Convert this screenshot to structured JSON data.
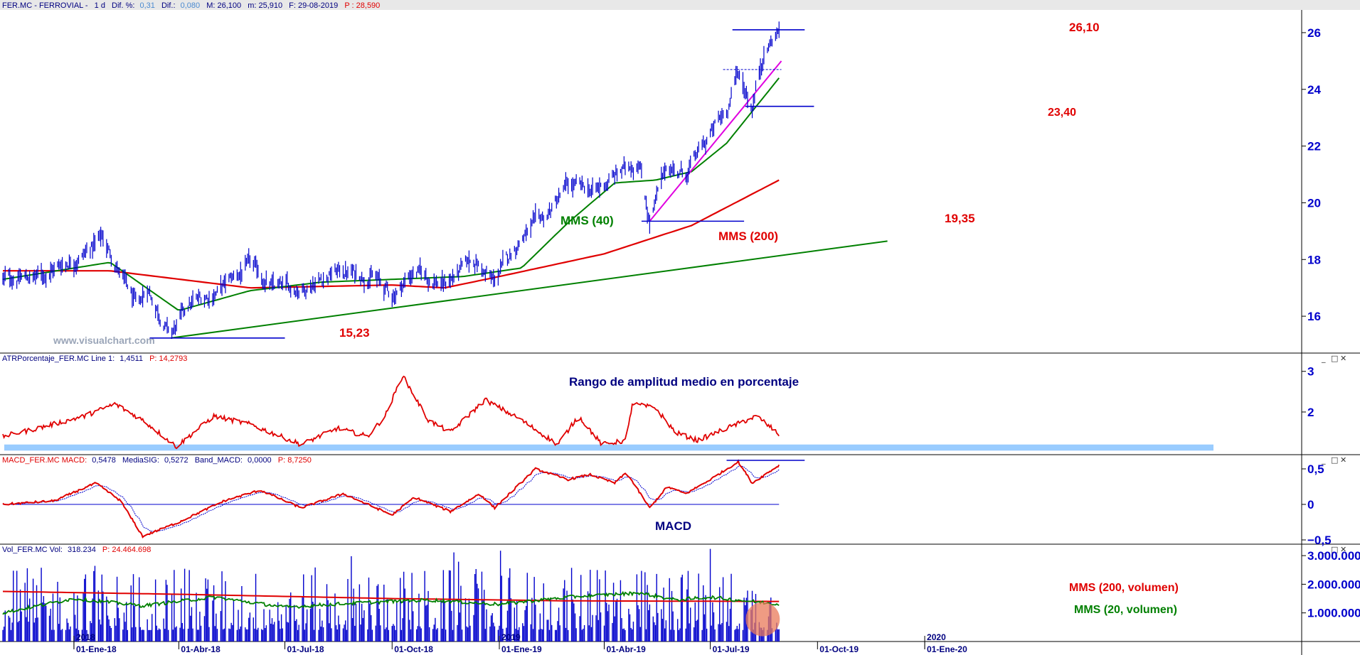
{
  "header": {
    "symbol": "FER.MC - FERROVIAL -",
    "period": "1 d",
    "dif_pct_label": "Dif. %:",
    "dif_pct_value": "0,31",
    "dif_label": "Dif.:",
    "dif_value": "0,080",
    "max": "M: 26,100",
    "min": "m: 25,910",
    "date": "F: 29-08-2019",
    "prev": "P : 28,590"
  },
  "panels": {
    "atr": {
      "label": "ATRPorcentaje_FER.MC  Line 1:",
      "value": "1,4511",
      "p": "P: 14,2793",
      "title": "Rango de amplitud medio en porcentaje"
    },
    "macd": {
      "label": "MACD_FER.MC  MACD:",
      "value": "0,5478",
      "sig_label": "MediaSIG:",
      "sig_value": "0,5272",
      "band_label": "Band_MACD:",
      "band_value": "0,0000",
      "p": "P: 8,7250",
      "title": "MACD"
    },
    "vol": {
      "label": "Vol_FER.MC  Vol:",
      "value": "318.234",
      "p": "P: 24.464.698",
      "mms200": "MMS (200, volumen)",
      "mms20": "MMS (20, volumen)"
    }
  },
  "annotations": {
    "watermark": "www.visualchart.com",
    "mms40": "MMS (40)",
    "mms200": "MMS (200)",
    "lvl_2610": "26,10",
    "lvl_2340": "23,40",
    "lvl_1935": "19,35",
    "lvl_1523": "15,23"
  },
  "colors": {
    "price": "#0000cc",
    "mms40": "#008000",
    "mms200": "#e00000",
    "trendline": "#008000",
    "support": "#0000cc",
    "channel": "#e000e0",
    "atr_line": "#e00000",
    "atr_band": "#99ccff",
    "macd": "#e00000",
    "macd_signal": "#0000cc",
    "volume": "#0000cc",
    "highlight": "#e97a5a",
    "annotation_red": "#e00000",
    "annotation_green": "#008000",
    "annotation_navy": "#000080"
  },
  "chart_data": [
    {
      "id": "price",
      "type": "ohlc",
      "symbol": "FER.MC",
      "last_close": 26.1,
      "y_ticks": [
        16,
        18,
        20,
        22,
        24,
        26
      ],
      "ylim": [
        14.7,
        26.8
      ],
      "x_ticks": [
        "01-Ene-18",
        "01-Abr-18",
        "01-Jul-18",
        "01-Oct-18",
        "01-Ene-19",
        "01-Abr-19",
        "01-Jul-19",
        "01-Oct-19",
        "01-Ene-20"
      ],
      "year_markers": [
        "2018",
        "2019",
        "2020"
      ],
      "anchor_points": [
        {
          "date": "2017-11-01",
          "close": 17.3
        },
        {
          "date": "2017-12-01",
          "close": 17.4
        },
        {
          "date": "2018-01-10",
          "close": 18.2
        },
        {
          "date": "2018-01-25",
          "close": 18.8
        },
        {
          "date": "2018-02-10",
          "close": 17.5
        },
        {
          "date": "2018-02-25",
          "close": 16.2
        },
        {
          "date": "2018-03-05",
          "close": 17.0
        },
        {
          "date": "2018-03-25",
          "close": 15.3
        },
        {
          "date": "2018-04-10",
          "close": 16.4
        },
        {
          "date": "2018-05-01",
          "close": 16.8
        },
        {
          "date": "2018-06-01",
          "close": 17.8
        },
        {
          "date": "2018-06-20",
          "close": 17.0
        },
        {
          "date": "2018-07-15",
          "close": 17.0
        },
        {
          "date": "2018-08-15",
          "close": 17.6
        },
        {
          "date": "2018-09-15",
          "close": 17.4
        },
        {
          "date": "2018-10-01",
          "close": 16.7
        },
        {
          "date": "2018-10-20",
          "close": 17.6
        },
        {
          "date": "2018-11-15",
          "close": 17.1
        },
        {
          "date": "2018-12-10",
          "close": 18.0
        },
        {
          "date": "2018-12-27",
          "close": 17.2
        },
        {
          "date": "2019-01-20",
          "close": 18.8
        },
        {
          "date": "2019-02-10",
          "close": 19.5
        },
        {
          "date": "2019-03-01",
          "close": 20.6
        },
        {
          "date": "2019-03-25",
          "close": 20.4
        },
        {
          "date": "2019-04-15",
          "close": 21.1
        },
        {
          "date": "2019-05-01",
          "close": 21.5
        },
        {
          "date": "2019-05-10",
          "close": 19.35
        },
        {
          "date": "2019-05-25",
          "close": 21.3
        },
        {
          "date": "2019-06-10",
          "close": 21.0
        },
        {
          "date": "2019-07-01",
          "close": 22.4
        },
        {
          "date": "2019-07-15",
          "close": 23.3
        },
        {
          "date": "2019-07-25",
          "close": 24.6
        },
        {
          "date": "2019-08-06",
          "close": 23.4
        },
        {
          "date": "2019-08-15",
          "close": 25.2
        },
        {
          "date": "2019-08-29",
          "close": 26.1
        }
      ],
      "mms40_anchors": [
        {
          "date": "2017-11-01",
          "value": 17.3
        },
        {
          "date": "2018-02-01",
          "value": 17.9
        },
        {
          "date": "2018-04-01",
          "value": 16.2
        },
        {
          "date": "2018-06-01",
          "value": 16.9
        },
        {
          "date": "2018-08-01",
          "value": 17.2
        },
        {
          "date": "2018-10-01",
          "value": 17.3
        },
        {
          "date": "2018-12-01",
          "value": 17.4
        },
        {
          "date": "2019-01-20",
          "value": 17.7
        },
        {
          "date": "2019-03-01",
          "value": 19.3
        },
        {
          "date": "2019-04-10",
          "value": 20.7
        },
        {
          "date": "2019-05-15",
          "value": 20.8
        },
        {
          "date": "2019-06-15",
          "value": 21.1
        },
        {
          "date": "2019-07-15",
          "value": 22.1
        },
        {
          "date": "2019-08-29",
          "value": 24.4
        }
      ],
      "mms200_anchors": [
        {
          "date": "2017-11-01",
          "value": 17.6
        },
        {
          "date": "2018-02-01",
          "value": 17.6
        },
        {
          "date": "2018-06-01",
          "value": 17.0
        },
        {
          "date": "2018-10-01",
          "value": 17.1
        },
        {
          "date": "2018-11-15",
          "value": 17.0
        },
        {
          "date": "2019-01-01",
          "value": 17.4
        },
        {
          "date": "2019-04-01",
          "value": 18.2
        },
        {
          "date": "2019-06-15",
          "value": 19.2
        },
        {
          "date": "2019-08-29",
          "value": 20.8
        }
      ],
      "trendline": {
        "from": {
          "date": "2018-03-25",
          "value": 15.23
        },
        "to": {
          "date": "2019-11-30",
          "value": 18.65
        }
      },
      "channel_line": {
        "from": {
          "date": "2019-05-10",
          "value": 19.35
        },
        "to": {
          "date": "2019-08-31",
          "value": 25.0
        }
      },
      "levels": [
        {
          "value": 26.1,
          "from": "2019-07-20",
          "to": "2019-09-20",
          "label": "26,10"
        },
        {
          "value": 24.7,
          "from": "2019-07-12",
          "to": "2019-08-31",
          "style": "dashed"
        },
        {
          "value": 23.4,
          "from": "2019-07-31",
          "to": "2019-09-28",
          "label": "23,40"
        },
        {
          "value": 19.35,
          "from": "2019-05-03",
          "to": "2019-07-30",
          "label": "19,35"
        },
        {
          "value": 15.23,
          "from": "2018-03-07",
          "to": "2018-07-01",
          "label": "15,23"
        }
      ]
    },
    {
      "id": "atr_pct",
      "type": "line",
      "title": "Rango de amplitud medio en porcentaje",
      "y_ticks": [
        2,
        3
      ],
      "ylim": [
        0.95,
        3.45
      ],
      "last": 1.4511,
      "band": [
        1.05,
        1.2
      ],
      "anchors": [
        {
          "date": "2017-11-01",
          "value": 1.4
        },
        {
          "date": "2017-12-01",
          "value": 1.6
        },
        {
          "date": "2018-01-10",
          "value": 1.9
        },
        {
          "date": "2018-02-05",
          "value": 2.2
        },
        {
          "date": "2018-03-01",
          "value": 1.8
        },
        {
          "date": "2018-03-30",
          "value": 1.15
        },
        {
          "date": "2018-05-01",
          "value": 1.9
        },
        {
          "date": "2018-06-01",
          "value": 1.7
        },
        {
          "date": "2018-07-15",
          "value": 1.2
        },
        {
          "date": "2018-08-15",
          "value": 1.6
        },
        {
          "date": "2018-09-10",
          "value": 1.4
        },
        {
          "date": "2018-09-25",
          "value": 1.9
        },
        {
          "date": "2018-10-10",
          "value": 2.9
        },
        {
          "date": "2018-11-01",
          "value": 1.8
        },
        {
          "date": "2018-11-20",
          "value": 1.5
        },
        {
          "date": "2018-12-20",
          "value": 2.3
        },
        {
          "date": "2019-01-20",
          "value": 1.8
        },
        {
          "date": "2019-02-20",
          "value": 1.2
        },
        {
          "date": "2019-03-10",
          "value": 1.9
        },
        {
          "date": "2019-03-30",
          "value": 1.2
        },
        {
          "date": "2019-04-20",
          "value": 1.3
        },
        {
          "date": "2019-04-25",
          "value": 2.2
        },
        {
          "date": "2019-05-15",
          "value": 2.1
        },
        {
          "date": "2019-06-01",
          "value": 1.5
        },
        {
          "date": "2019-06-20",
          "value": 1.3
        },
        {
          "date": "2019-07-15",
          "value": 1.6
        },
        {
          "date": "2019-08-10",
          "value": 1.9
        },
        {
          "date": "2019-08-29",
          "value": 1.45
        }
      ]
    },
    {
      "id": "macd",
      "type": "line",
      "title": "MACD",
      "y_ticks": [
        -0.5,
        0,
        0.5
      ],
      "ylim": [
        -0.56,
        0.7
      ],
      "macd_last": 0.5478,
      "signal_last": 0.5272,
      "band": 0,
      "level": {
        "value": 0.62,
        "from": "2019-07-15",
        "to": "2019-09-20"
      },
      "macd_anchors": [
        {
          "date": "2017-11-01",
          "value": 0.0
        },
        {
          "date": "2017-12-15",
          "value": 0.05
        },
        {
          "date": "2018-01-20",
          "value": 0.3
        },
        {
          "date": "2018-02-10",
          "value": 0.05
        },
        {
          "date": "2018-03-01",
          "value": -0.45
        },
        {
          "date": "2018-04-01",
          "value": -0.25
        },
        {
          "date": "2018-05-10",
          "value": 0.05
        },
        {
          "date": "2018-06-10",
          "value": 0.2
        },
        {
          "date": "2018-07-15",
          "value": -0.05
        },
        {
          "date": "2018-08-20",
          "value": 0.15
        },
        {
          "date": "2018-10-01",
          "value": -0.15
        },
        {
          "date": "2018-10-20",
          "value": 0.1
        },
        {
          "date": "2018-11-20",
          "value": -0.1
        },
        {
          "date": "2018-12-15",
          "value": 0.15
        },
        {
          "date": "2018-12-28",
          "value": -0.05
        },
        {
          "date": "2019-02-01",
          "value": 0.5
        },
        {
          "date": "2019-03-01",
          "value": 0.35
        },
        {
          "date": "2019-03-20",
          "value": 0.42
        },
        {
          "date": "2019-04-10",
          "value": 0.3
        },
        {
          "date": "2019-04-20",
          "value": 0.45
        },
        {
          "date": "2019-05-10",
          "value": -0.05
        },
        {
          "date": "2019-05-25",
          "value": 0.25
        },
        {
          "date": "2019-06-10",
          "value": 0.15
        },
        {
          "date": "2019-07-01",
          "value": 0.35
        },
        {
          "date": "2019-07-25",
          "value": 0.6
        },
        {
          "date": "2019-08-06",
          "value": 0.3
        },
        {
          "date": "2019-08-29",
          "value": 0.55
        }
      ]
    },
    {
      "id": "volume",
      "type": "bar",
      "y_ticks": [
        1000000,
        2000000,
        3000000
      ],
      "y_tick_labels": [
        "1.000.000",
        "2.000.000",
        "3.000.000"
      ],
      "ylim": [
        0,
        3400000
      ],
      "last": 318234,
      "mms200_anchors": [
        {
          "date": "2017-11-01",
          "value": 1750000
        },
        {
          "date": "2018-04-01",
          "value": 1650000
        },
        {
          "date": "2018-10-01",
          "value": 1500000
        },
        {
          "date": "2019-03-01",
          "value": 1420000
        },
        {
          "date": "2019-08-29",
          "value": 1400000
        }
      ],
      "mms20_anchors": [
        {
          "date": "2017-11-01",
          "value": 1000000
        },
        {
          "date": "2018-01-01",
          "value": 1500000
        },
        {
          "date": "2018-03-01",
          "value": 1250000
        },
        {
          "date": "2018-05-01",
          "value": 1550000
        },
        {
          "date": "2018-07-01",
          "value": 1200000
        },
        {
          "date": "2018-09-01",
          "value": 1350000
        },
        {
          "date": "2018-11-01",
          "value": 1450000
        },
        {
          "date": "2019-01-01",
          "value": 1300000
        },
        {
          "date": "2019-03-01",
          "value": 1550000
        },
        {
          "date": "2019-05-01",
          "value": 1700000
        },
        {
          "date": "2019-06-01",
          "value": 1450000
        },
        {
          "date": "2019-07-01",
          "value": 1550000
        },
        {
          "date": "2019-08-29",
          "value": 1300000
        }
      ]
    }
  ]
}
